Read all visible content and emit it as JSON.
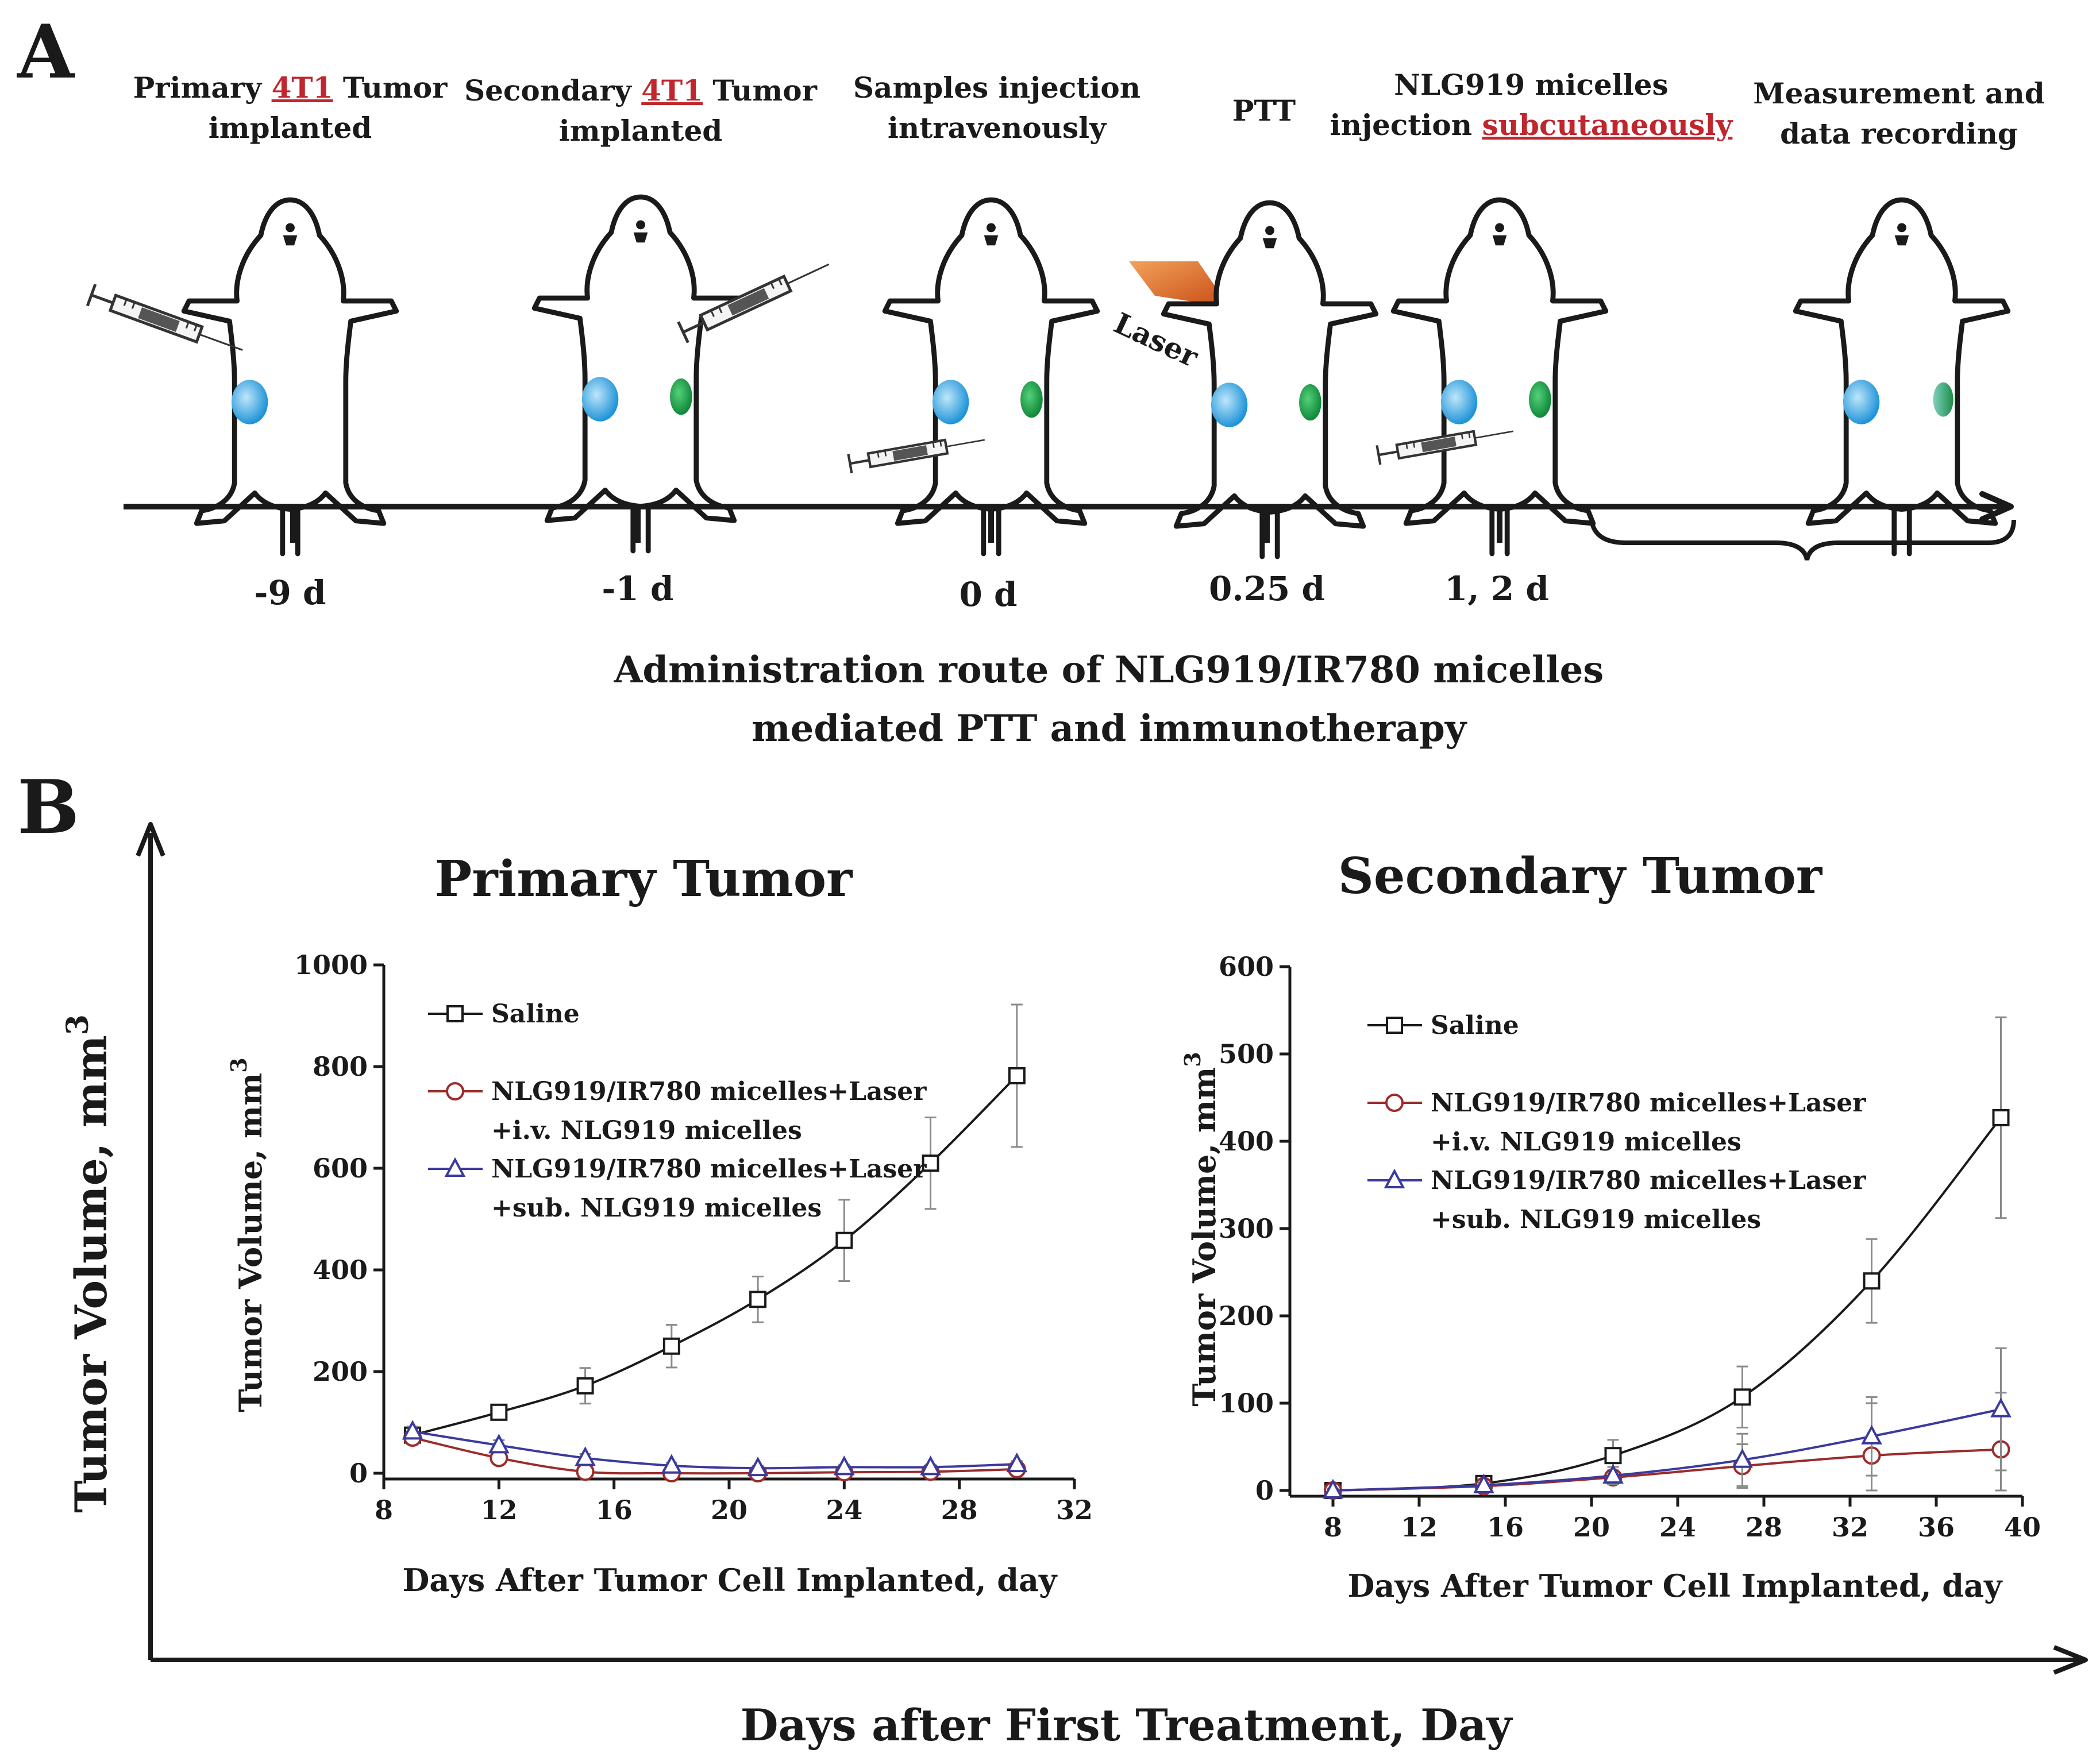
{
  "panel_a": {
    "letter": "A",
    "steps": [
      {
        "line1_a": "Primary ",
        "line1_red": "4T1",
        "line1_b": " Tumor",
        "line2": "implanted",
        "day": "-9 d"
      },
      {
        "line1_a": "Secondary ",
        "line1_red": "4T1",
        "line1_b": " Tumor",
        "line2": "implanted",
        "day": "-1 d"
      },
      {
        "line1": "Samples injection",
        "line2": "intravenously",
        "day": "0 d"
      },
      {
        "line1": "PTT",
        "day": "0.25 d"
      },
      {
        "line1": "NLG919 micelles",
        "line2_a": "injection ",
        "line2_red": "subcutaneously",
        "day": "1, 2 d"
      },
      {
        "line1": "Measurement and",
        "line2": "data recording"
      }
    ],
    "laser_label": "Laser",
    "caption_line1": "Administration route of NLG919/IR780 micelles",
    "caption_line2": "mediated PTT and immunotherapy"
  },
  "panel_b": {
    "letter": "B",
    "outer_ylabel": "Tumor Volume, mm",
    "outer_ylabel_sup": "3",
    "outer_xlabel": "Days after First Treatment, Day"
  },
  "colors": {
    "saline": "#1a1a1a",
    "iv": "#9b2c2c",
    "sub": "#3a3a9e",
    "red_text": "#c0262d"
  },
  "chart_data": [
    {
      "type": "line",
      "title": "Primary Tumor",
      "xlabel": "Days After Tumor Cell Implanted, day",
      "ylabel": "Tumor Volume, mm",
      "ylabel_sup": "3",
      "xlim": [
        8,
        32
      ],
      "ylim": [
        0,
        1000
      ],
      "xticks": [
        8,
        12,
        16,
        20,
        24,
        28,
        32
      ],
      "yticks": [
        0,
        200,
        400,
        600,
        800,
        1000
      ],
      "legend_position": "top-left",
      "series": [
        {
          "name": "Saline",
          "marker": "square",
          "color_key": "saline",
          "x": [
            9,
            12,
            15,
            18,
            21,
            24,
            27,
            30
          ],
          "y": [
            75,
            120,
            172,
            250,
            342,
            458,
            610,
            782
          ],
          "err": [
            10,
            15,
            35,
            42,
            45,
            80,
            90,
            140
          ]
        },
        {
          "name": "NLG919/IR780 micelles+Laser",
          "name2": "+i.v. NLG919 micelles",
          "marker": "circle",
          "color_key": "iv",
          "x": [
            9,
            12,
            15,
            18,
            21,
            24,
            27,
            30
          ],
          "y": [
            70,
            30,
            3,
            0,
            0,
            2,
            3,
            8
          ],
          "err": [
            8,
            8,
            4,
            2,
            2,
            3,
            3,
            4
          ]
        },
        {
          "name": "NLG919/IR780 micelles+Laser",
          "name2": "+sub. NLG919 micelles",
          "marker": "triangle",
          "color_key": "sub",
          "x": [
            9,
            12,
            15,
            18,
            21,
            24,
            27,
            30
          ],
          "y": [
            82,
            55,
            30,
            15,
            10,
            12,
            12,
            18
          ],
          "err": [
            10,
            10,
            8,
            6,
            5,
            5,
            5,
            6
          ]
        }
      ]
    },
    {
      "type": "line",
      "title": "Secondary Tumor",
      "xlabel": "Days After Tumor Cell Implanted, day",
      "ylabel": "Tumor Volume, mm",
      "ylabel_sup": "3",
      "xlim": [
        6,
        40
      ],
      "ylim": [
        0,
        600
      ],
      "xticks": [
        8,
        12,
        16,
        20,
        24,
        28,
        32,
        36,
        40
      ],
      "yticks": [
        0,
        100,
        200,
        300,
        400,
        500,
        600
      ],
      "legend_position": "top-left",
      "series": [
        {
          "name": "Saline",
          "marker": "square",
          "color_key": "saline",
          "x": [
            8,
            15,
            21,
            27,
            33,
            39
          ],
          "y": [
            0,
            8,
            40,
            107,
            240,
            427
          ],
          "err": [
            2,
            4,
            18,
            35,
            48,
            115
          ]
        },
        {
          "name": "NLG919/IR780 micelles+Laser",
          "name2": "+i.v. NLG919 micelles",
          "marker": "circle",
          "color_key": "iv",
          "x": [
            8,
            15,
            21,
            27,
            33,
            39
          ],
          "y": [
            0,
            5,
            15,
            28,
            40,
            47
          ],
          "err": [
            2,
            3,
            8,
            25,
            60,
            65
          ]
        },
        {
          "name": "NLG919/IR780 micelles+Laser",
          "name2": "+sub. NLG919 micelles",
          "marker": "triangle",
          "color_key": "sub",
          "x": [
            8,
            15,
            21,
            27,
            33,
            39
          ],
          "y": [
            0,
            6,
            17,
            35,
            62,
            93
          ],
          "err": [
            2,
            3,
            10,
            30,
            45,
            70
          ]
        }
      ]
    }
  ]
}
